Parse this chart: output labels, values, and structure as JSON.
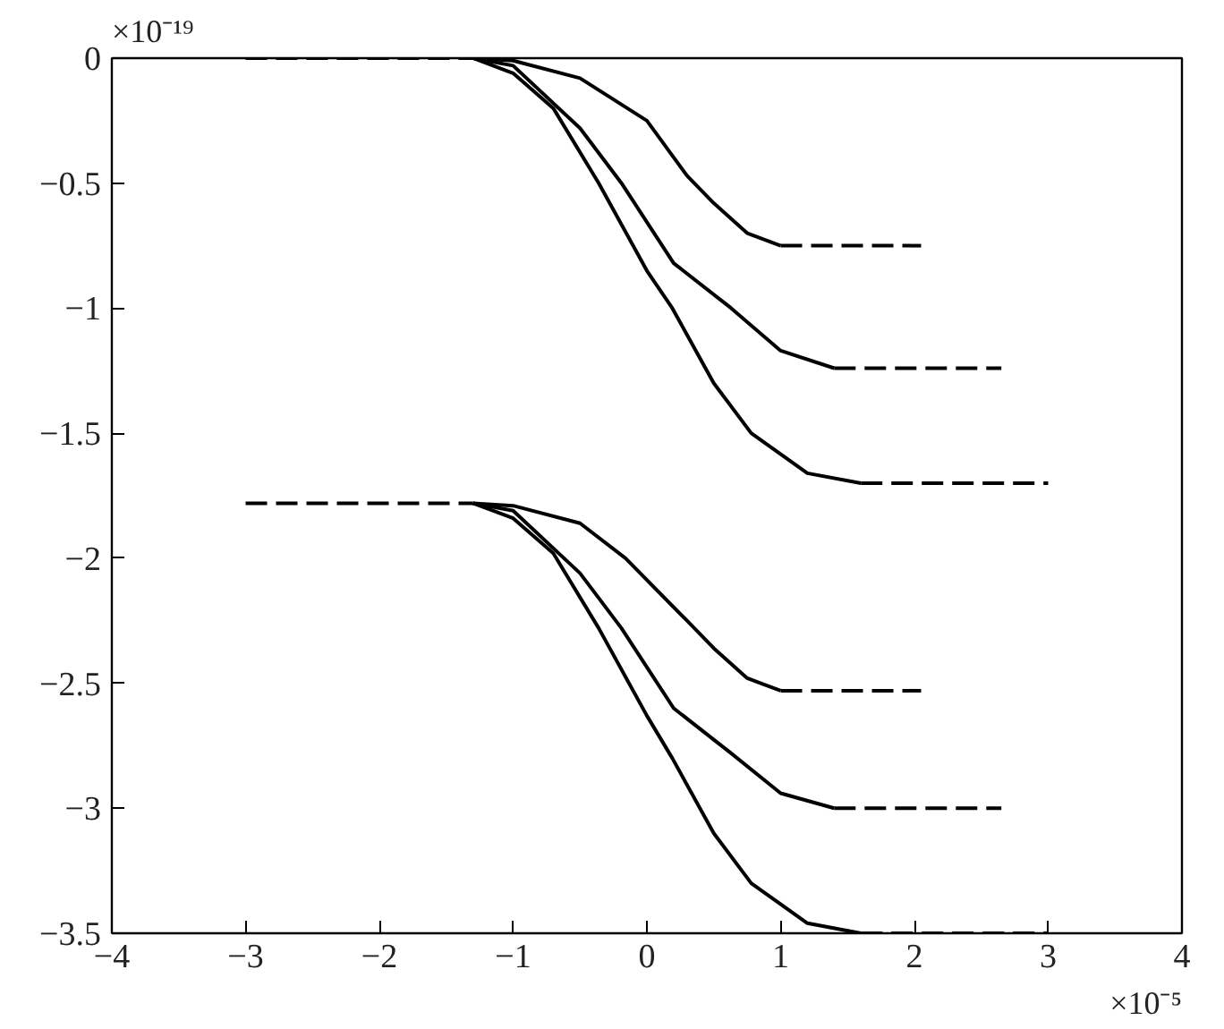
{
  "chart_data": {
    "type": "line",
    "xlim": [
      -4,
      4
    ],
    "ylim": [
      -3.5,
      0
    ],
    "xticks": [
      -4,
      -3,
      -2,
      -1,
      0,
      1,
      2,
      3,
      4
    ],
    "yticks": [
      0,
      -0.5,
      -1,
      -1.5,
      -2,
      -2.5,
      -3,
      -3.5
    ],
    "grid": false,
    "annotations": [
      "×10⁻¹⁹",
      "×10⁻⁵"
    ],
    "series": [
      {
        "color": "#000000",
        "line_style": "dashed",
        "x": [
          -3,
          -1.3
        ],
        "values": [
          0,
          0
        ]
      },
      {
        "color": "#000000",
        "line_style": "solid",
        "x": [
          -1.3,
          -1.0,
          -0.5,
          0,
          0.3,
          0.5,
          0.75,
          1.0
        ],
        "values": [
          0,
          -0.01,
          -0.08,
          -0.25,
          -0.47,
          -0.58,
          -0.7,
          -0.75
        ]
      },
      {
        "color": "#000000",
        "line_style": "solid",
        "x": [
          -1.3,
          -1.0,
          -0.5,
          -0.19,
          0.2,
          0.63,
          1.0,
          1.4
        ],
        "values": [
          0,
          -0.03,
          -0.28,
          -0.5,
          -0.82,
          -1.0,
          -1.17,
          -1.24
        ]
      },
      {
        "color": "#000000",
        "line_style": "solid",
        "x": [
          -1.3,
          -1.0,
          -0.7,
          -0.36,
          0,
          0.19,
          0.5,
          0.78,
          1.2,
          1.6
        ],
        "values": [
          0,
          -0.06,
          -0.2,
          -0.5,
          -0.85,
          -1.0,
          -1.3,
          -1.5,
          -1.66,
          -1.7
        ]
      },
      {
        "color": "#000000",
        "line_style": "dashed",
        "x": [
          1.0,
          2.05
        ],
        "values": [
          -0.75,
          -0.75
        ]
      },
      {
        "color": "#000000",
        "line_style": "dashed",
        "x": [
          1.4,
          2.65
        ],
        "values": [
          -1.24,
          -1.24
        ]
      },
      {
        "color": "#000000",
        "line_style": "dashed",
        "x": [
          1.6,
          3.0
        ],
        "values": [
          -1.7,
          -1.7
        ]
      },
      {
        "color": "#000000",
        "line_style": "dashed",
        "x": [
          -3,
          -1.3
        ],
        "values": [
          -1.78,
          -1.78
        ]
      },
      {
        "color": "#000000",
        "line_style": "solid",
        "x": [
          -1.3,
          -1.0,
          -0.5,
          -0.16,
          0.3,
          0.5,
          0.75,
          1.0
        ],
        "values": [
          -1.78,
          -1.79,
          -1.86,
          -2.0,
          -2.25,
          -2.36,
          -2.48,
          -2.53
        ]
      },
      {
        "color": "#000000",
        "line_style": "solid",
        "x": [
          -1.3,
          -1.0,
          -0.5,
          -0.19,
          0.2,
          0.63,
          1.0,
          1.4
        ],
        "values": [
          -1.78,
          -1.81,
          -2.06,
          -2.28,
          -2.6,
          -2.78,
          -2.94,
          -3.0
        ]
      },
      {
        "color": "#000000",
        "line_style": "solid",
        "x": [
          -1.3,
          -1.0,
          -0.7,
          -0.36,
          0,
          0.19,
          0.5,
          0.78,
          1.2,
          1.6
        ],
        "values": [
          -1.78,
          -1.84,
          -1.98,
          -2.28,
          -2.63,
          -2.8,
          -3.1,
          -3.3,
          -3.46,
          -3.5
        ]
      },
      {
        "color": "#000000",
        "line_style": "dashed",
        "x": [
          1.0,
          2.05
        ],
        "values": [
          -2.53,
          -2.53
        ]
      },
      {
        "color": "#000000",
        "line_style": "dashed",
        "x": [
          1.4,
          2.65
        ],
        "values": [
          -3.0,
          -3.0
        ]
      },
      {
        "color": "#000000",
        "line_style": "dashed",
        "x": [
          1.6,
          3.0
        ],
        "values": [
          -3.5,
          -3.5
        ]
      }
    ]
  }
}
